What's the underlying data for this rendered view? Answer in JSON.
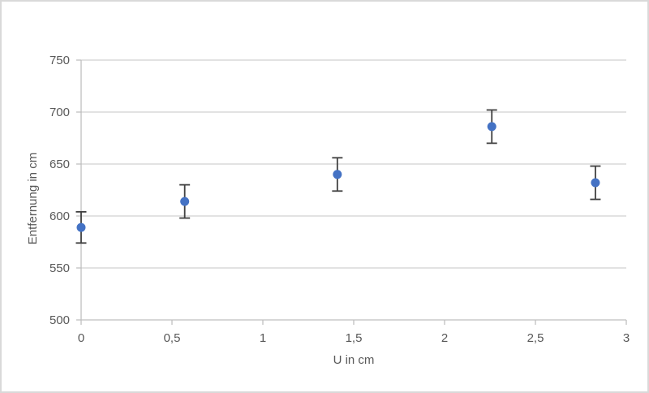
{
  "chart_data": {
    "type": "scatter",
    "title": "",
    "xlabel": "U in cm",
    "ylabel": "Entfernung in cm",
    "xlim": [
      0,
      3
    ],
    "ylim": [
      500,
      750
    ],
    "grid": true,
    "legend": "none",
    "x_ticks": [
      {
        "value": 0,
        "label": "0"
      },
      {
        "value": 0.5,
        "label": "0,5"
      },
      {
        "value": 1,
        "label": "1"
      },
      {
        "value": 1.5,
        "label": "1,5"
      },
      {
        "value": 2,
        "label": "2"
      },
      {
        "value": 2.5,
        "label": "2,5"
      },
      {
        "value": 3,
        "label": "3"
      }
    ],
    "y_ticks": [
      {
        "value": 500,
        "label": "500"
      },
      {
        "value": 550,
        "label": "550"
      },
      {
        "value": 600,
        "label": "600"
      },
      {
        "value": 650,
        "label": "650"
      },
      {
        "value": 700,
        "label": "700"
      },
      {
        "value": 750,
        "label": "750"
      }
    ],
    "points": [
      {
        "x": 0,
        "y": 589,
        "err": 15
      },
      {
        "x": 0.57,
        "y": 614,
        "err": 16
      },
      {
        "x": 1.41,
        "y": 640,
        "err": 16
      },
      {
        "x": 2.26,
        "y": 686,
        "err": 16
      },
      {
        "x": 2.83,
        "y": 632,
        "err": 16
      }
    ],
    "colors": {
      "marker": "#4472C4",
      "error_bar": "#404040",
      "gridline": "#D9D9D9",
      "axis": "#BFBFBF",
      "text": "#595959",
      "background": "#FFFFFF",
      "border": "#D9D9D9"
    }
  }
}
